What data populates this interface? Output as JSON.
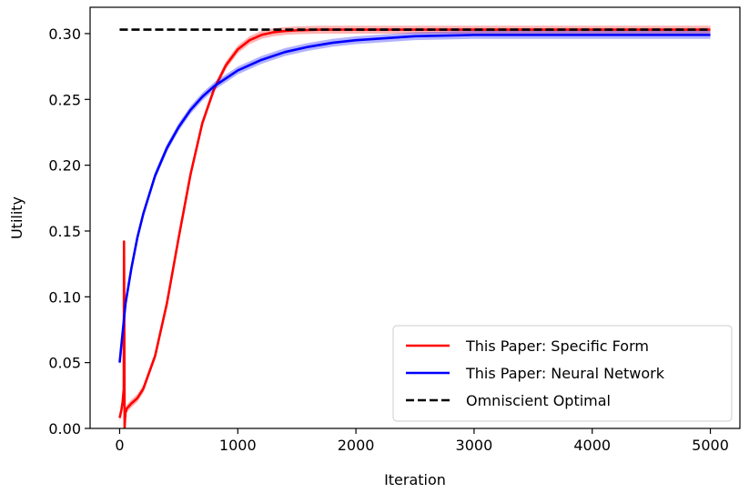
{
  "chart_data": {
    "type": "line",
    "title": "",
    "xlabel": "Iteration",
    "ylabel": "Utility",
    "xlim": [
      -250,
      5250
    ],
    "ylim": [
      0.0,
      0.32
    ],
    "xticks": [
      0,
      1000,
      2000,
      3000,
      4000,
      5000
    ],
    "yticks": [
      0.0,
      0.05,
      0.1,
      0.15,
      0.2,
      0.25,
      0.3
    ],
    "xtick_labels": [
      "0",
      "1000",
      "2000",
      "3000",
      "4000",
      "5000"
    ],
    "ytick_labels": [
      "0.00",
      "0.05",
      "0.10",
      "0.15",
      "0.20",
      "0.25",
      "0.30"
    ],
    "grid": false,
    "legend_position": "bottom-right",
    "series": [
      {
        "name": "This Paper: Specific Form",
        "color": "#ff0000",
        "style": "solid",
        "band": 0.003,
        "x": [
          0,
          15,
          25,
          35,
          37,
          40,
          42,
          45,
          50,
          60,
          80,
          100,
          150,
          200,
          300,
          400,
          500,
          600,
          700,
          800,
          900,
          1000,
          1100,
          1200,
          1300,
          1400,
          1500,
          1700,
          2000,
          2500,
          3000,
          4000,
          5000
        ],
        "y": [
          0.008,
          0.014,
          0.02,
          0.03,
          0.142,
          0.06,
          0.0,
          0.006,
          0.012,
          0.015,
          0.017,
          0.019,
          0.023,
          0.03,
          0.055,
          0.095,
          0.145,
          0.193,
          0.232,
          0.258,
          0.276,
          0.288,
          0.295,
          0.299,
          0.301,
          0.302,
          0.3025,
          0.303,
          0.303,
          0.303,
          0.303,
          0.303,
          0.303
        ]
      },
      {
        "name": "This Paper: Neural Network",
        "color": "#0000ff",
        "style": "solid",
        "band": 0.003,
        "x": [
          0,
          50,
          100,
          150,
          200,
          300,
          400,
          500,
          600,
          700,
          800,
          900,
          1000,
          1200,
          1400,
          1600,
          1800,
          2000,
          2500,
          3000,
          4000,
          5000
        ],
        "y": [
          0.05,
          0.095,
          0.122,
          0.145,
          0.163,
          0.192,
          0.213,
          0.229,
          0.242,
          0.252,
          0.26,
          0.266,
          0.272,
          0.28,
          0.286,
          0.29,
          0.293,
          0.295,
          0.298,
          0.299,
          0.299,
          0.299
        ]
      },
      {
        "name": "Omniscient Optimal",
        "color": "#000000",
        "style": "dashed",
        "x": [
          0,
          5000
        ],
        "y": [
          0.303,
          0.303
        ]
      }
    ]
  }
}
